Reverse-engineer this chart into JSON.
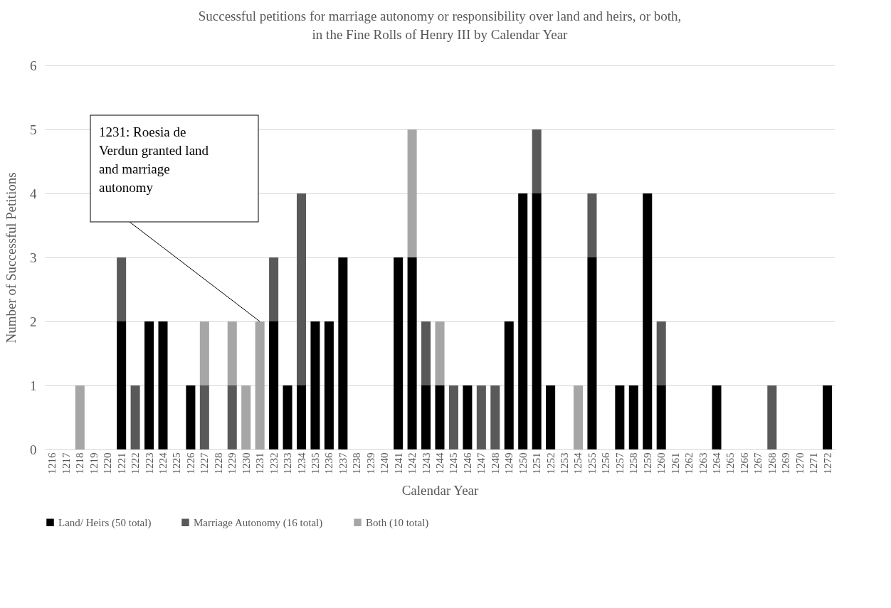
{
  "chart_data": {
    "type": "bar",
    "title": "Successful petitions for marriage autonomy or responsibility over land and heirs, or both, in the Fine Rolls of Henry III by Calendar Year",
    "xlabel": "Calendar Year",
    "ylabel": "Number of Successful Petitions",
    "categories": [
      "1216",
      "1217",
      "1218",
      "1219",
      "1220",
      "1221",
      "1222",
      "1223",
      "1224",
      "1225",
      "1226",
      "1227",
      "1228",
      "1229",
      "1230",
      "1231",
      "1232",
      "1233",
      "1234",
      "1235",
      "1236",
      "1237",
      "1238",
      "1239",
      "1240",
      "1241",
      "1242",
      "1243",
      "1244",
      "1245",
      "1246",
      "1247",
      "1248",
      "1249",
      "1250",
      "1251",
      "1252",
      "1253",
      "1254",
      "1255",
      "1256",
      "1257",
      "1258",
      "1259",
      "1260",
      "1261",
      "1262",
      "1263",
      "1264",
      "1265",
      "1266",
      "1267",
      "1268",
      "1269",
      "1270",
      "1271",
      "1272"
    ],
    "stacked": true,
    "series": [
      {
        "name": "Land/ Heirs (50 total)",
        "color": "#000000",
        "values": [
          0,
          0,
          0,
          0,
          0,
          2,
          0,
          2,
          2,
          0,
          1,
          0,
          0,
          0,
          0,
          0,
          2,
          1,
          1,
          2,
          2,
          3,
          0,
          0,
          0,
          3,
          3,
          1,
          1,
          0,
          1,
          0,
          0,
          2,
          4,
          4,
          1,
          0,
          0,
          3,
          0,
          1,
          1,
          4,
          1,
          0,
          0,
          0,
          1,
          0,
          0,
          0,
          0,
          0,
          0,
          0,
          1
        ]
      },
      {
        "name": "Marriage Autonomy (16 total)",
        "color": "#595959",
        "values": [
          0,
          0,
          0,
          0,
          0,
          1,
          1,
          0,
          0,
          0,
          0,
          1,
          0,
          1,
          0,
          0,
          1,
          0,
          3,
          0,
          0,
          0,
          0,
          0,
          0,
          0,
          0,
          1,
          0,
          1,
          0,
          1,
          1,
          0,
          0,
          1,
          0,
          0,
          0,
          1,
          0,
          0,
          0,
          0,
          1,
          0,
          0,
          0,
          0,
          0,
          0,
          0,
          1,
          0,
          0,
          0,
          0
        ]
      },
      {
        "name": "Both (10 total)",
        "color": "#a6a6a6",
        "values": [
          0,
          0,
          1,
          0,
          0,
          0,
          0,
          0,
          0,
          0,
          0,
          1,
          0,
          1,
          1,
          2,
          0,
          0,
          0,
          0,
          0,
          0,
          0,
          0,
          0,
          0,
          2,
          0,
          1,
          0,
          0,
          0,
          0,
          0,
          0,
          0,
          0,
          0,
          1,
          0,
          0,
          0,
          0,
          0,
          0,
          0,
          0,
          0,
          0,
          0,
          0,
          0,
          0,
          0,
          0,
          0,
          0
        ]
      }
    ],
    "ylim": [
      0,
      6
    ],
    "yticks": [
      0,
      1,
      2,
      3,
      4,
      5,
      6
    ],
    "grid": "y",
    "legend": "bottom",
    "annotations": [
      "1231: Roesia de Verdun granted land and marriage autonomy"
    ]
  }
}
